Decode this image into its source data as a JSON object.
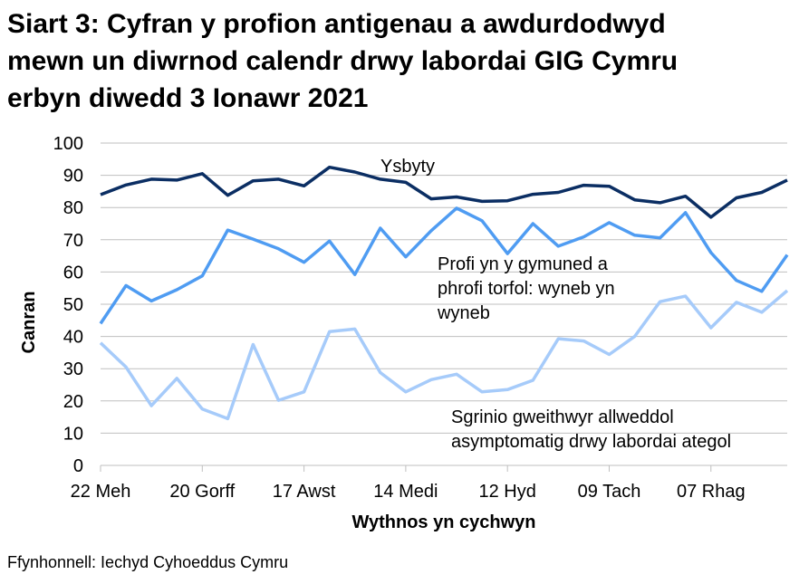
{
  "title": {
    "lines": [
      "Siart 3: Cyfran y profion antigenau a awdurdodwyd",
      "mewn un diwrnod calendr drwy labordai GIG Cymru",
      "erbyn diwedd 3 Ionawr 2021"
    ]
  },
  "source": "Ffynhonnell: Iechyd Cyhoeddus Cymru",
  "colors": {
    "hospital": "#0b2e63",
    "community": "#4f9cf2",
    "keyworkers": "#a6cbfa",
    "gridline": "#bfbfbf"
  },
  "chart_data": {
    "type": "line",
    "title": "Siart 3: Cyfran y profion antigenau a awdurdodwyd mewn un diwrnod calendr drwy labordai GIG Cymru erbyn diwedd 3 Ionawr 2021",
    "xlabel": "Wythnos yn cychwyn",
    "ylabel": "Canran",
    "ylim": [
      0,
      100
    ],
    "yticks": [
      0,
      10,
      20,
      30,
      40,
      50,
      60,
      70,
      80,
      90,
      100
    ],
    "grid": true,
    "legend_position": "inline annotations",
    "x_tick_labels": [
      "22 Meh",
      "20 Gorff",
      "17 Awst",
      "14 Medi",
      "12 Hyd",
      "09 Tach",
      "07 Rhag"
    ],
    "x_tick_positions": [
      0,
      4,
      8,
      12,
      16,
      20,
      24
    ],
    "x": [
      "22 Meh",
      "29 Meh",
      "06 Gorff",
      "13 Gorff",
      "20 Gorff",
      "27 Gorff",
      "03 Awst",
      "10 Awst",
      "17 Awst",
      "24 Awst",
      "31 Awst",
      "07 Medi",
      "14 Medi",
      "21 Medi",
      "28 Medi",
      "05 Hyd",
      "12 Hyd",
      "19 Hyd",
      "26 Hyd",
      "02 Tach",
      "09 Tach",
      "16 Tach",
      "23 Tach",
      "30 Tach",
      "07 Rhag",
      "14 Rhag",
      "21 Rhag",
      "28 Rhag"
    ],
    "series": [
      {
        "name": "Ysbyty",
        "values": [
          84,
          87,
          88.8,
          88.5,
          90.5,
          83.8,
          88.3,
          88.8,
          86.7,
          92.5,
          91,
          88.8,
          87.8,
          82.7,
          83.3,
          81.9,
          82.1,
          84.1,
          84.7,
          86.9,
          86.6,
          82.4,
          81.5,
          83.5,
          77,
          83,
          84.7,
          88.5
        ]
      },
      {
        "name": "Profi yn y gymuned a phrofi torfol: wyneb yn wyneb",
        "values": [
          44,
          55.8,
          51,
          54.5,
          58.8,
          73,
          70.2,
          67.2,
          63,
          69.6,
          59.2,
          73.6,
          64.7,
          72.8,
          79.8,
          75.9,
          65.7,
          75,
          68,
          70.9,
          75.3,
          71.4,
          70.6,
          78.4,
          66,
          57.4,
          54,
          65.3
        ]
      },
      {
        "name": "Sgrinio gweithwyr allweddol asymptomatig drwy labordai ategol",
        "values": [
          38,
          30.5,
          18.5,
          27,
          17.5,
          14.5,
          37.5,
          20.2,
          22.8,
          41.5,
          42.3,
          28.8,
          22.8,
          26.6,
          28.3,
          22.8,
          23.5,
          26.4,
          39.3,
          38.6,
          34.4,
          40,
          50.8,
          52.5,
          42.7,
          50.6,
          47.5,
          54.2
        ]
      }
    ],
    "annotations": [
      {
        "series": "Ysbyty",
        "lines": [
          "Ysbyty"
        ]
      },
      {
        "series": "community",
        "lines": [
          "Profi yn y gymuned a",
          "phrofi torfol: wyneb yn",
          "wyneb"
        ]
      },
      {
        "series": "keyworkers",
        "lines": [
          "Sgrinio gweithwyr allweddol",
          "asymptomatig drwy labordai ategol"
        ]
      }
    ]
  }
}
